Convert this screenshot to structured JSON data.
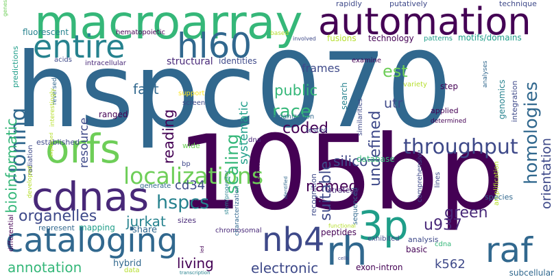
{
  "colors": {
    "background": "#ffffff",
    "palette": [
      "#440154",
      "#482878",
      "#3e4989",
      "#31688e",
      "#26828e",
      "#1f9e89",
      "#35b779",
      "#6ece58",
      "#b5de2b",
      "#fde725"
    ]
  },
  "words": [
    {
      "text": "hspc070",
      "color": "#31688e"
    },
    {
      "text": "105bp",
      "color": "#440154"
    },
    {
      "text": "macroarray",
      "color": "#35b779"
    },
    {
      "text": "automation",
      "color": "#440154"
    },
    {
      "text": "entire",
      "color": "#26828e"
    },
    {
      "text": "hl60",
      "color": "#31688e"
    },
    {
      "text": "cataloging",
      "color": "#31688e"
    },
    {
      "text": "orfs",
      "color": "#6ece58"
    },
    {
      "text": "cdnas",
      "color": "#482878"
    },
    {
      "text": "localizations",
      "color": "#6ece58"
    },
    {
      "text": "nb4",
      "color": "#3e4989"
    },
    {
      "text": "3p",
      "color": "#1f9e89"
    },
    {
      "text": "rh",
      "color": "#31688e"
    },
    {
      "text": "raf",
      "color": "#31688e"
    },
    {
      "text": "throughput",
      "color": "#3e4989"
    },
    {
      "text": "frames",
      "color": "#3e4989"
    },
    {
      "text": "est",
      "color": "#6ece58"
    },
    {
      "text": "race",
      "color": "#35b779"
    },
    {
      "text": "public",
      "color": "#35b779"
    },
    {
      "text": "fast",
      "color": "#31688e"
    },
    {
      "text": "cloning",
      "color": "#31688e"
    },
    {
      "text": "hspcs",
      "color": "#26828e"
    },
    {
      "text": "scaling",
      "color": "#35b779"
    },
    {
      "text": "reading",
      "color": "#440154"
    },
    {
      "text": "coded",
      "color": "#440154"
    },
    {
      "text": "undefined",
      "color": "#3e4989"
    },
    {
      "text": "homologies",
      "color": "#31688e"
    },
    {
      "text": "orientation",
      "color": "#3e4989"
    },
    {
      "text": "named",
      "color": "#440154"
    },
    {
      "text": "silico",
      "color": "#3e4989"
    },
    {
      "text": "suitable",
      "color": "#3e4989"
    },
    {
      "text": "utr",
      "color": "#3e4989"
    },
    {
      "text": "jurkat",
      "color": "#26828e"
    },
    {
      "text": "cd34",
      "color": "#3e4989"
    },
    {
      "text": "organelles",
      "color": "#3e4989"
    },
    {
      "text": "u937",
      "color": "#482878"
    },
    {
      "text": "green",
      "color": "#482878"
    },
    {
      "text": "annotation",
      "color": "#35b779"
    },
    {
      "text": "living",
      "color": "#440154"
    },
    {
      "text": "electronic",
      "color": "#3e4989"
    },
    {
      "text": "k562",
      "color": "#3e4989"
    },
    {
      "text": "bioinformatic",
      "color": "#35b779"
    },
    {
      "text": "resource",
      "color": "#3e4989"
    },
    {
      "text": "systematic",
      "color": "#1f9e89"
    },
    {
      "text": "ranged",
      "color": "#440154"
    },
    {
      "text": "structural",
      "color": "#482878"
    },
    {
      "text": "identities",
      "color": "#3e4989"
    },
    {
      "text": "fluorescent",
      "color": "#26828e"
    },
    {
      "text": "hematopoietic",
      "color": "#440154"
    },
    {
      "text": "technology",
      "color": "#440154"
    },
    {
      "text": "fusions",
      "color": "#b5de2b"
    },
    {
      "text": "motifs/domains",
      "color": "#1f9e89"
    },
    {
      "text": "patterns",
      "color": "#1f9e89"
    },
    {
      "text": "rapidly",
      "color": "#3e4989"
    },
    {
      "text": "putatively",
      "color": "#3e4989"
    },
    {
      "text": "technique",
      "color": "#3e4989"
    },
    {
      "text": "genes",
      "color": "#6ece58"
    },
    {
      "text": "predictions",
      "color": "#1f9e89"
    },
    {
      "text": "acids",
      "color": "#3e4989"
    },
    {
      "text": "intracellular",
      "color": "#482878"
    },
    {
      "text": "based",
      "color": "#b5de2b"
    },
    {
      "text": "involved",
      "color": "#3e4989"
    },
    {
      "text": "examine",
      "color": "#440154"
    },
    {
      "text": "search",
      "color": "#26828e"
    },
    {
      "text": "similarities",
      "color": "#3e4989"
    },
    {
      "text": "variety",
      "color": "#b5de2b"
    },
    {
      "text": "step",
      "color": "#440154"
    },
    {
      "text": "genomics",
      "color": "#26828e"
    },
    {
      "text": "integration",
      "color": "#3e4989"
    },
    {
      "text": "analyses",
      "color": "#31688e"
    },
    {
      "text": "applied",
      "color": "#440154"
    },
    {
      "text": "determined",
      "color": "#440154"
    },
    {
      "text": "support",
      "color": "#fde725"
    },
    {
      "text": "reversed",
      "color": "#31688e"
    },
    {
      "text": "interestingly",
      "color": "#b5de2b"
    },
    {
      "text": "screen",
      "color": "#3e4989"
    },
    {
      "text": "organization",
      "color": "#31688e"
    },
    {
      "text": "tested",
      "color": "#3e4989"
    },
    {
      "text": "established",
      "color": "#3e4989"
    },
    {
      "text": "expressed",
      "color": "#b5de2b"
    },
    {
      "text": "wide",
      "color": "#6ece58"
    },
    {
      "text": "dna",
      "color": "#482878"
    },
    {
      "text": "database",
      "color": "#35b779"
    },
    {
      "text": "radiation",
      "color": "#3e4989"
    },
    {
      "text": "developed",
      "color": "#b5de2b"
    },
    {
      "text": "bp",
      "color": "#3e4989"
    },
    {
      "text": "amino",
      "color": "#440154"
    },
    {
      "text": "stem/progenitor",
      "color": "#26828e"
    },
    {
      "text": "identified",
      "color": "#31688e"
    },
    {
      "text": "recognition",
      "color": "#3e4989"
    },
    {
      "text": "sequenced",
      "color": "#31688e"
    },
    {
      "text": "strategy",
      "color": "#482878"
    },
    {
      "text": "comprehensive",
      "color": "#3e4989"
    },
    {
      "text": "lines",
      "color": "#3e4989"
    },
    {
      "text": "amplification",
      "color": "#b5de2b"
    },
    {
      "text": "species",
      "color": "#31688e"
    },
    {
      "text": "subcellular",
      "color": "#31688e"
    },
    {
      "text": "generate",
      "color": "#31688e"
    },
    {
      "text": "differential",
      "color": "#440154"
    },
    {
      "text": "sizes",
      "color": "#482878"
    },
    {
      "text": "share",
      "color": "#31688e"
    },
    {
      "text": "mapping",
      "color": "#1f9e89"
    },
    {
      "text": "represent",
      "color": "#31688e"
    },
    {
      "text": "chromosomal",
      "color": "#482878"
    },
    {
      "text": "characterization",
      "color": "#31688e"
    },
    {
      "text": "functional",
      "color": "#b5de2b"
    },
    {
      "text": "led",
      "color": "#440154"
    },
    {
      "text": "peptides",
      "color": "#440154"
    },
    {
      "text": "exhibited",
      "color": "#3e4989"
    },
    {
      "text": "basic",
      "color": "#440154"
    },
    {
      "text": "cdna",
      "color": "#35b779"
    },
    {
      "text": "analysis",
      "color": "#3e4989"
    },
    {
      "text": "exon-intron",
      "color": "#440154"
    },
    {
      "text": "hybrid",
      "color": "#31688e"
    },
    {
      "text": "data",
      "color": "#b5de2b"
    },
    {
      "text": "cells",
      "color": "#3e4989"
    },
    {
      "text": "transcription",
      "color": "#26828e"
    }
  ]
}
